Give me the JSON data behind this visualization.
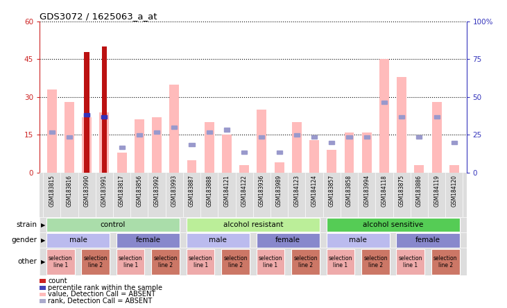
{
  "title": "GDS3072 / 1625063_a_at",
  "samples": [
    "GSM183815",
    "GSM183816",
    "GSM183990",
    "GSM183991",
    "GSM183817",
    "GSM183856",
    "GSM183992",
    "GSM183993",
    "GSM183887",
    "GSM183888",
    "GSM184121",
    "GSM184122",
    "GSM183936",
    "GSM183989",
    "GSM184123",
    "GSM184124",
    "GSM183857",
    "GSM183858",
    "GSM183994",
    "GSM184118",
    "GSM183875",
    "GSM183886",
    "GSM184119",
    "GSM184120"
  ],
  "pink_bar_heights": [
    33,
    28,
    22,
    24,
    8,
    21,
    22,
    35,
    5,
    20,
    15,
    3,
    25,
    4,
    20,
    13,
    9,
    16,
    16,
    45,
    38,
    3,
    28,
    3
  ],
  "blue_sq_heights": [
    16,
    14,
    23,
    22,
    10,
    15,
    16,
    18,
    11,
    16,
    17,
    8,
    14,
    8,
    15,
    14,
    12,
    14,
    14,
    28,
    22,
    14,
    22,
    12
  ],
  "red_bar_heights": [
    0,
    0,
    48,
    50,
    0,
    0,
    0,
    0,
    0,
    0,
    0,
    0,
    0,
    0,
    0,
    0,
    0,
    0,
    0,
    0,
    0,
    0,
    0,
    0
  ],
  "blue_dot_heights": [
    0,
    0,
    23,
    22,
    0,
    0,
    0,
    0,
    0,
    0,
    0,
    0,
    0,
    0,
    0,
    0,
    0,
    0,
    0,
    0,
    0,
    0,
    0,
    0
  ],
  "ylim_left": [
    0,
    60
  ],
  "ylim_right": [
    0,
    100
  ],
  "yticks_left": [
    0,
    15,
    30,
    45,
    60
  ],
  "yticks_right": [
    0,
    25,
    50,
    75,
    100
  ],
  "ytick_right_labels": [
    "0",
    "25",
    "50",
    "75",
    "100%"
  ],
  "strain_groups": [
    {
      "label": "control",
      "start": 0,
      "end": 7,
      "color": "#aaddaa"
    },
    {
      "label": "alcohol resistant",
      "start": 8,
      "end": 15,
      "color": "#bbee99"
    },
    {
      "label": "alcohol sensitive",
      "start": 16,
      "end": 23,
      "color": "#55cc55"
    }
  ],
  "gender_groups": [
    {
      "label": "male",
      "start": 0,
      "end": 3,
      "color": "#bbbbee"
    },
    {
      "label": "female",
      "start": 4,
      "end": 7,
      "color": "#8888cc"
    },
    {
      "label": "male",
      "start": 8,
      "end": 11,
      "color": "#bbbbee"
    },
    {
      "label": "female",
      "start": 12,
      "end": 15,
      "color": "#8888cc"
    },
    {
      "label": "male",
      "start": 16,
      "end": 19,
      "color": "#bbbbee"
    },
    {
      "label": "female",
      "start": 20,
      "end": 23,
      "color": "#8888cc"
    }
  ],
  "other_groups": [
    {
      "label": "selection\nline 1",
      "start": 0,
      "end": 1,
      "color": "#eeaaaa"
    },
    {
      "label": "selection\nline 2",
      "start": 2,
      "end": 3,
      "color": "#cc7766"
    },
    {
      "label": "selection\nline 1",
      "start": 4,
      "end": 5,
      "color": "#eeaaaa"
    },
    {
      "label": "selection\nline 2",
      "start": 6,
      "end": 7,
      "color": "#cc7766"
    },
    {
      "label": "selection\nline 1",
      "start": 8,
      "end": 9,
      "color": "#eeaaaa"
    },
    {
      "label": "selection\nline 2",
      "start": 10,
      "end": 11,
      "color": "#cc7766"
    },
    {
      "label": "selection\nline 1",
      "start": 12,
      "end": 13,
      "color": "#eeaaaa"
    },
    {
      "label": "selection\nline 2",
      "start": 14,
      "end": 15,
      "color": "#cc7766"
    },
    {
      "label": "selection\nline 1",
      "start": 16,
      "end": 17,
      "color": "#eeaaaa"
    },
    {
      "label": "selection\nline 2",
      "start": 18,
      "end": 19,
      "color": "#cc7766"
    },
    {
      "label": "selection\nline 1",
      "start": 20,
      "end": 21,
      "color": "#eeaaaa"
    },
    {
      "label": "selection\nline 2",
      "start": 22,
      "end": 23,
      "color": "#cc7766"
    }
  ],
  "legend_items": [
    {
      "color": "#cc2222",
      "label": "count"
    },
    {
      "color": "#4444bb",
      "label": "percentile rank within the sample"
    },
    {
      "color": "#ffbbbb",
      "label": "value, Detection Call = ABSENT"
    },
    {
      "color": "#aaaacc",
      "label": "rank, Detection Call = ABSENT"
    }
  ],
  "bar_width": 0.55,
  "pink_color": "#ffbbbb",
  "blue_sq_color": "#9999cc",
  "red_bar_color": "#bb1111",
  "blue_dot_color": "#3333bb",
  "left_axis_color": "#cc2222",
  "right_axis_color": "#3333bb",
  "bg_color": "#ffffff",
  "row_label_color": "#333333",
  "xticklabel_bg": "#dddddd"
}
